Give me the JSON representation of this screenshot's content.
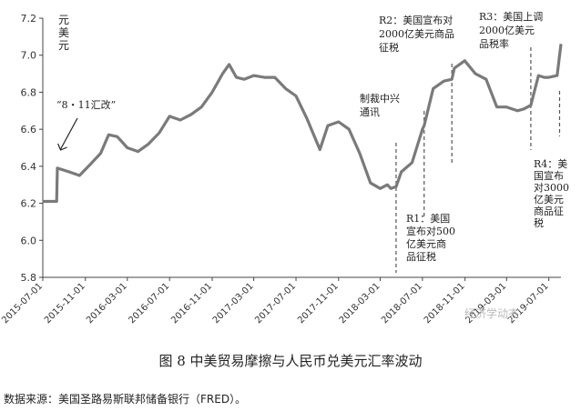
{
  "chart_data": {
    "type": "line",
    "title": "",
    "ylabel": "元美元",
    "xlabel": "",
    "ylim": [
      5.8,
      7.2
    ],
    "yticks": [
      "5.8",
      "6.0",
      "6.2",
      "6.4",
      "6.6",
      "6.8",
      "7.0",
      "7.2"
    ],
    "xticks": [
      "2015-07-01",
      "2015-11-01",
      "2016-03-01",
      "2016-07-01",
      "2016-11-01",
      "2017-03-01",
      "2017-07-01",
      "2017-11-01",
      "2018-03-01",
      "2018-07-01",
      "2018-11-01",
      "2019-03-01",
      "2019-07-01"
    ],
    "grid": false,
    "series": [
      {
        "name": "",
        "x": [
          "2015-07-01",
          "2015-08-10",
          "2015-08-12",
          "2015-09-15",
          "2015-10-15",
          "2015-11-15",
          "2015-12-15",
          "2016-01-07",
          "2016-02-01",
          "2016-03-01",
          "2016-04-01",
          "2016-05-01",
          "2016-06-01",
          "2016-07-01",
          "2016-08-01",
          "2016-09-01",
          "2016-10-01",
          "2016-11-01",
          "2016-12-01",
          "2016-12-20",
          "2017-01-10",
          "2017-02-01",
          "2017-03-01",
          "2017-04-01",
          "2017-05-01",
          "2017-06-01",
          "2017-07-01",
          "2017-08-01",
          "2017-09-08",
          "2017-10-01",
          "2017-11-01",
          "2017-12-01",
          "2018-01-01",
          "2018-02-01",
          "2018-03-01",
          "2018-03-22",
          "2018-04-01",
          "2018-04-16",
          "2018-05-01",
          "2018-06-01",
          "2018-07-01",
          "2018-07-06",
          "2018-08-01",
          "2018-09-01",
          "2018-09-24",
          "2018-10-01",
          "2018-10-31",
          "2018-12-01",
          "2019-01-01",
          "2019-02-01",
          "2019-03-01",
          "2019-04-01",
          "2019-04-20",
          "2019-05-10",
          "2019-06-01",
          "2019-06-18",
          "2019-07-01",
          "2019-07-25",
          "2019-08-05"
        ],
        "values": [
          6.21,
          6.21,
          6.39,
          6.37,
          6.35,
          6.41,
          6.47,
          6.57,
          6.56,
          6.5,
          6.48,
          6.52,
          6.58,
          6.67,
          6.65,
          6.68,
          6.72,
          6.8,
          6.9,
          6.95,
          6.88,
          6.87,
          6.89,
          6.88,
          6.88,
          6.82,
          6.78,
          6.66,
          6.49,
          6.62,
          6.64,
          6.6,
          6.47,
          6.31,
          6.28,
          6.3,
          6.28,
          6.29,
          6.37,
          6.42,
          6.6,
          6.62,
          6.82,
          6.86,
          6.87,
          6.93,
          6.97,
          6.9,
          6.87,
          6.72,
          6.72,
          6.7,
          6.71,
          6.73,
          6.89,
          6.88,
          6.88,
          6.89,
          7.06
        ]
      }
    ],
    "annotations": [
      {
        "id": "reform-811",
        "date": "2015-08-11",
        "lines": [
          "“8・11汇改”"
        ]
      },
      {
        "id": "zte",
        "date": "2018-04-16",
        "lines": [
          "制裁中兴",
          "通讯"
        ]
      },
      {
        "id": "r1",
        "date": "2018-07-06",
        "lines": [
          "R1：美国",
          "宣布对500",
          "亿美元商",
          "品征税"
        ]
      },
      {
        "id": "r2",
        "date": "2018-09-24",
        "lines": [
          "R2：美国宣布对",
          "2000亿美元商品",
          "征税"
        ]
      },
      {
        "id": "r3",
        "date": "2019-05-10",
        "lines": [
          "R3：美国上调",
          "2000亿美元",
          "品税率"
        ]
      },
      {
        "id": "r4",
        "date": "2019-08-01",
        "lines": [
          "R4：美",
          "国宣布",
          "对3000",
          "亿美元",
          "商品征",
          "税"
        ]
      }
    ]
  },
  "caption": "图 8  中美贸易摩擦与人民币兑美元汇率波动",
  "source": "数据来源：美国圣路易斯联邦储备银行（FRED）。",
  "watermark": "经济学动态"
}
